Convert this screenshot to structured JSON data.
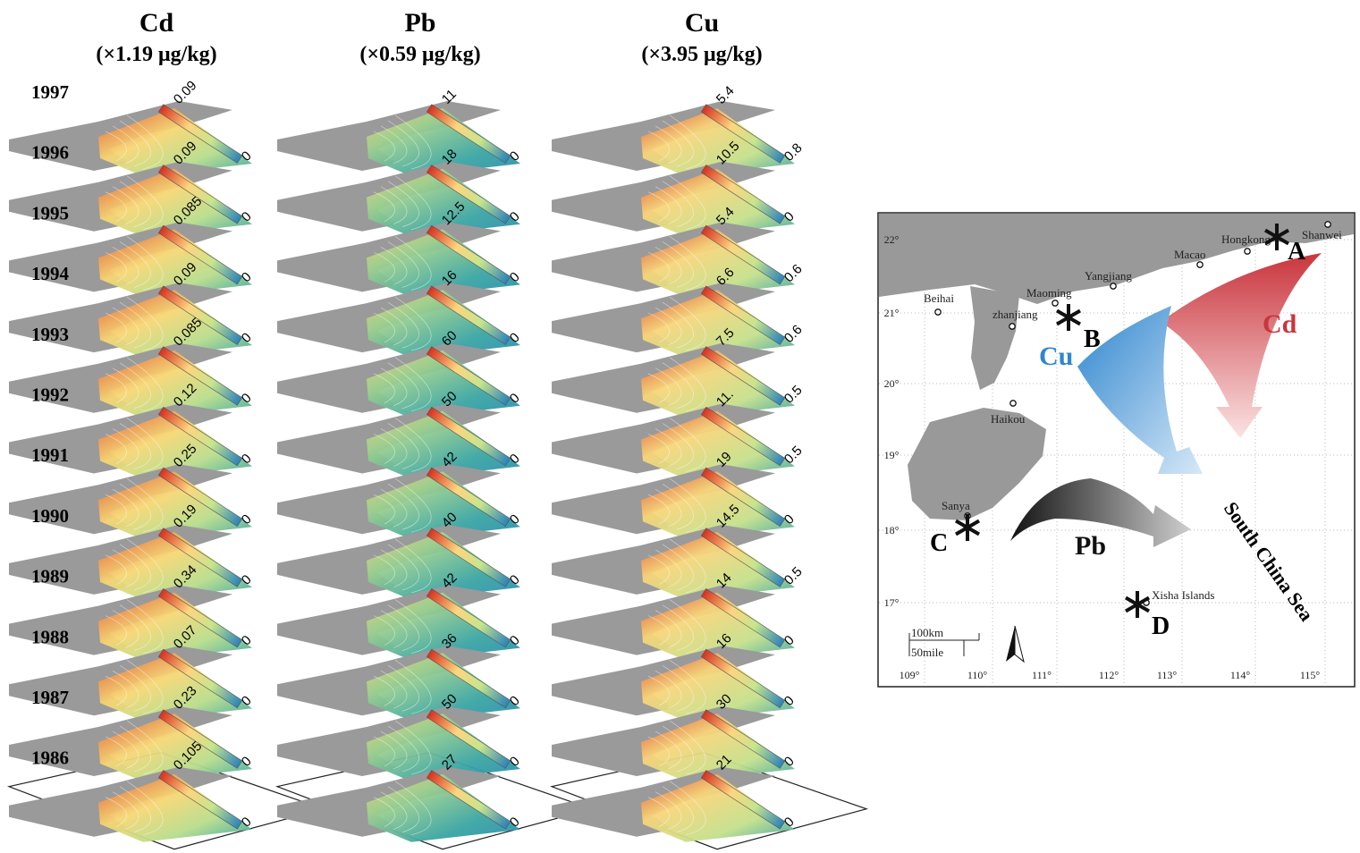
{
  "columns": [
    {
      "element": "Cd",
      "unit": "(×1.19 μg/kg)",
      "scale_max": [
        "0.09",
        "0.09",
        "0.085",
        "0.09",
        "0.085",
        "0.12",
        "0.25",
        "0.19",
        "0.34",
        "0.07",
        "0.23",
        "0.105"
      ],
      "scale_min": [
        "0",
        "0",
        "0",
        "0",
        "0",
        "0",
        "0",
        "0",
        "0",
        "0",
        "0",
        "0"
      ]
    },
    {
      "element": "Pb",
      "unit": "(×0.59 μg/kg)",
      "scale_max": [
        "11",
        "18",
        "12.5",
        "16",
        "60",
        "50",
        "42",
        "40",
        "42",
        "36",
        "50",
        "27"
      ],
      "scale_min": [
        "0",
        "0",
        "0",
        "0",
        "0",
        "0",
        "0",
        "0",
        "0",
        "0",
        "0",
        "0"
      ]
    },
    {
      "element": "Cu",
      "unit": "(×3.95 μg/kg)",
      "scale_max": [
        "5.4",
        "10.5",
        "5.4",
        "6.6",
        "7.5",
        "11.",
        "19",
        "14.5",
        "14",
        "16",
        "30",
        "21"
      ],
      "scale_min": [
        "0.8",
        "0",
        "0.6",
        "0.6",
        "0.5",
        "0.5",
        "0",
        "0.5",
        "0",
        "0",
        "0",
        "0"
      ]
    }
  ],
  "years": [
    "1997",
    "1996",
    "1995",
    "1994",
    "1993",
    "1992",
    "1991",
    "1990",
    "1989",
    "1988",
    "1987",
    "1986"
  ],
  "map": {
    "lat_labels": [
      "22°",
      "21°",
      "20°",
      "19°",
      "18°",
      "17°"
    ],
    "lon_labels": [
      "109°",
      "110°",
      "111°",
      "112°",
      "113°",
      "114°",
      "115°"
    ],
    "places": [
      "Shanwei",
      "Hongkong",
      "Macao",
      "Yangjiang",
      "Maoming",
      "Beihai",
      "zhanjiang",
      "Haikou",
      "Sanya",
      "Xisha Islands"
    ],
    "sites": [
      "A",
      "B",
      "C",
      "D"
    ],
    "flows": [
      "Cd",
      "Cu",
      "Pb"
    ],
    "sea": "South China Sea",
    "scale": [
      "100km",
      "50mile"
    ]
  }
}
